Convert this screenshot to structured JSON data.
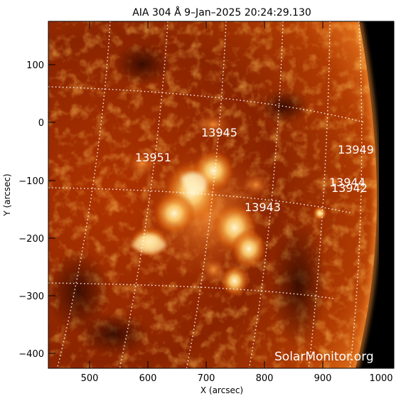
{
  "title": "AIA 304 Å  9–Jan–2025 20:24:29.130",
  "x_axis_label": "X (arcsec)",
  "y_axis_label": "Y (arcsec)",
  "x_ticks": [
    "500",
    "600",
    "700",
    "800",
    "900",
    "1000"
  ],
  "y_ticks": [
    "100",
    "0",
    "−100",
    "−200",
    "−300",
    "−400"
  ],
  "regions": [
    "13945",
    "13951",
    "13949",
    "13944",
    "13942",
    "13943"
  ],
  "watermark": "SolarMonitor.org",
  "colors": {
    "background": "#000000",
    "plasma_dark": "#5a1200",
    "plasma_mid": "#c84400",
    "plasma_bright": "#ffd98a"
  }
}
